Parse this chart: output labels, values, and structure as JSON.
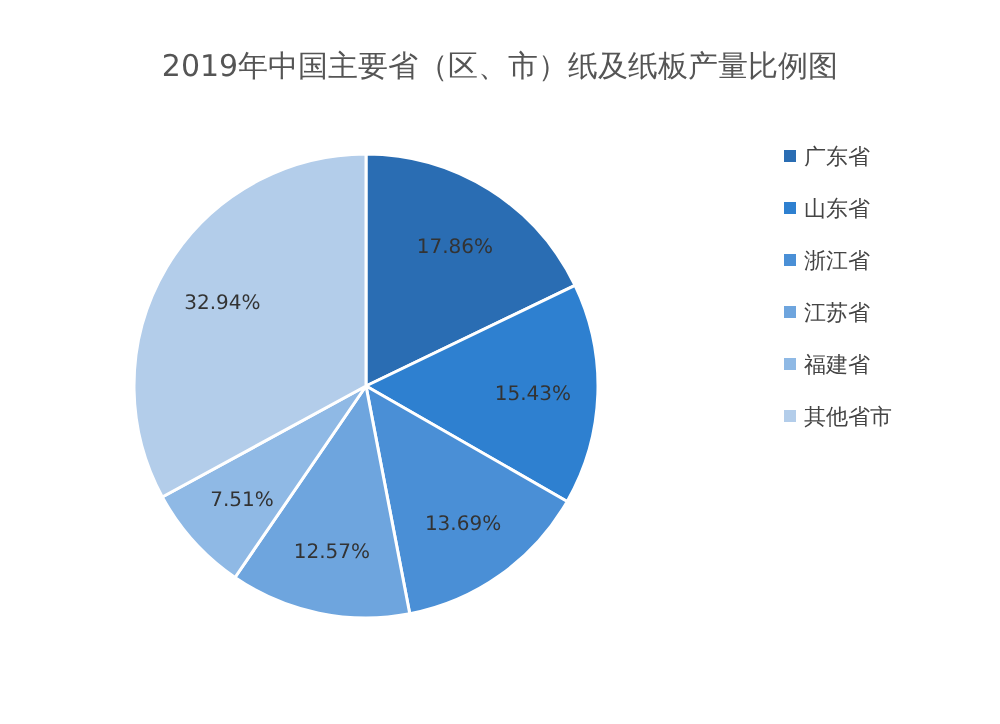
{
  "chart_data": {
    "type": "pie",
    "title": "2019年中国主要省（区、市）纸及纸板产量比例图",
    "categories": [
      "广东省",
      "山东省",
      "浙江省",
      "江苏省",
      "福建省",
      "其他省市"
    ],
    "values": [
      17.86,
      15.43,
      13.69,
      12.57,
      7.51,
      32.94
    ],
    "value_labels": [
      "17.86%",
      "15.43%",
      "13.69%",
      "12.57%",
      "7.51%",
      "32.94%"
    ],
    "colors": [
      "#2a6db3",
      "#2e80d0",
      "#4a8fd6",
      "#6ea5de",
      "#8fb9e5",
      "#b3cdea"
    ],
    "legend": "right"
  }
}
